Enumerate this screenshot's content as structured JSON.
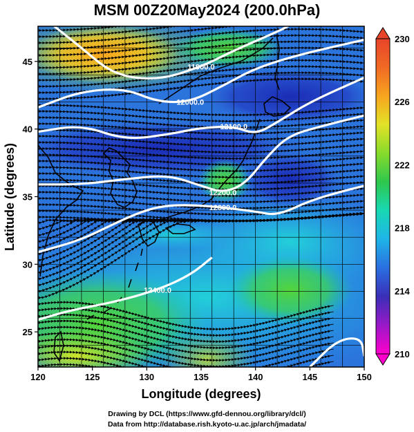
{
  "title": "MSM 00Z20May2024 (200.0hPa)",
  "x_axis": {
    "label": "Longitude (degrees)",
    "range": [
      120,
      150
    ],
    "ticks": [
      120,
      125,
      130,
      135,
      140,
      145,
      150
    ],
    "tick_labels": [
      "120",
      "125",
      "130",
      "135",
      "140",
      "145",
      "150"
    ]
  },
  "y_axis": {
    "label": "Latitude  (degrees)",
    "range": [
      22.4,
      47.6
    ],
    "ticks": [
      25,
      30,
      35,
      40,
      45
    ],
    "tick_labels": [
      "25",
      "30",
      "35",
      "40",
      "45"
    ]
  },
  "colorbar": {
    "min": 210,
    "max": 230,
    "labels": [
      "230",
      "226",
      "222",
      "218",
      "214",
      "210"
    ],
    "label_values": [
      230,
      226,
      222,
      218,
      214,
      210
    ],
    "colors": [
      "#ff00cc",
      "#9a19c8",
      "#3a2fb8",
      "#2a6fe0",
      "#1fb4e8",
      "#18d8b4",
      "#2ec74d",
      "#86db2c",
      "#e2e227",
      "#f7a51f",
      "#f06a24",
      "#e8442a"
    ]
  },
  "contours": [
    {
      "label": "11900.0",
      "points": [
        [
          121.5,
          47.6
        ],
        [
          124,
          46
        ],
        [
          127,
          44
        ],
        [
          131,
          43.6
        ],
        [
          135,
          44.6
        ],
        [
          138,
          45.8
        ],
        [
          142,
          47.2
        ],
        [
          143,
          47.6
        ]
      ]
    },
    {
      "label": "12000.0",
      "points": [
        [
          120,
          41.6
        ],
        [
          124,
          42.8
        ],
        [
          128,
          43
        ],
        [
          131,
          42
        ],
        [
          134,
          42
        ],
        [
          137,
          43.2
        ],
        [
          140,
          44.5
        ],
        [
          144,
          45.5
        ],
        [
          150,
          46.6
        ]
      ]
    },
    {
      "label": "12100.0",
      "points": [
        [
          120,
          39.8
        ],
        [
          124,
          40.3
        ],
        [
          128,
          39.2
        ],
        [
          132,
          39.6
        ],
        [
          135,
          40.1
        ],
        [
          138,
          40.2
        ],
        [
          140,
          39.6
        ],
        [
          142,
          40.5
        ],
        [
          145,
          42
        ],
        [
          150,
          43.8
        ]
      ]
    },
    {
      "label": "12200.0",
      "points": [
        [
          120,
          35.9
        ],
        [
          124,
          35.9
        ],
        [
          128,
          36.3
        ],
        [
          132,
          36.6
        ],
        [
          135,
          35.8
        ],
        [
          137,
          35.3
        ],
        [
          139,
          35.9
        ],
        [
          141,
          37.9
        ],
        [
          143,
          39.5
        ],
        [
          146,
          40.2
        ],
        [
          150,
          41
        ]
      ]
    },
    {
      "label": "12300.0",
      "points": [
        [
          120,
          30.9
        ],
        [
          124,
          31.8
        ],
        [
          128,
          33.4
        ],
        [
          131,
          34.3
        ],
        [
          134,
          34.4
        ],
        [
          137,
          34.2
        ],
        [
          140,
          33.9
        ],
        [
          142,
          33.6
        ],
        [
          145,
          34.7
        ],
        [
          148,
          35.4
        ],
        [
          150,
          35.8
        ]
      ]
    },
    {
      "label": "12400.0",
      "points": [
        [
          120,
          25.9
        ],
        [
          123,
          26.6
        ],
        [
          127,
          27.2
        ],
        [
          131,
          28.1
        ],
        [
          134,
          29.2
        ],
        [
          136,
          30.5
        ]
      ]
    },
    {
      "label": "",
      "points": [
        [
          145,
          22.4
        ],
        [
          147.5,
          24.4
        ],
        [
          149.7,
          24.6
        ],
        [
          150,
          23.2
        ]
      ]
    }
  ],
  "footer": {
    "line1": "Drawing by DCL (https://www.gfd-dennou.org/library/dcl/)",
    "line2": "Data from http://database.rish.kyoto-u.ac.jp/arch/jmadata/"
  }
}
